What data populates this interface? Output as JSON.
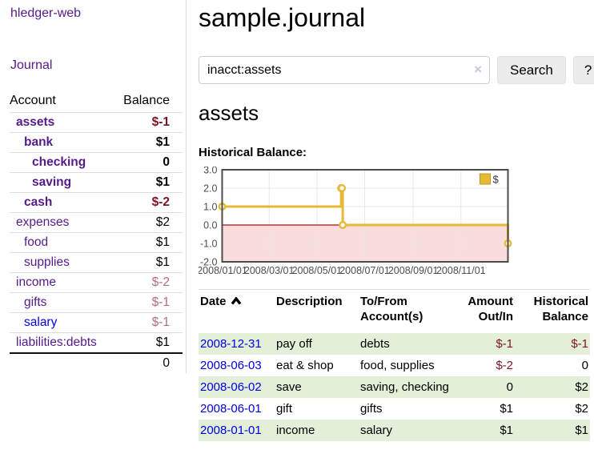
{
  "sidebar": {
    "brand": "hledger-web",
    "journal_link": "Journal",
    "accounts_table": {
      "headers": [
        "Account",
        "Balance"
      ],
      "rows": [
        {
          "name": "assets",
          "level": 1,
          "bold": true,
          "balance": "$-1",
          "balance_style": "neg-strong"
        },
        {
          "name": "bank",
          "level": 2,
          "bold": true,
          "balance": "$1",
          "balance_style": "pos"
        },
        {
          "name": "checking",
          "level": 3,
          "bold": true,
          "balance": "0",
          "balance_style": "pos"
        },
        {
          "name": "saving",
          "level": 3,
          "bold": true,
          "balance": "$1",
          "balance_style": "pos"
        },
        {
          "name": "cash",
          "level": 2,
          "bold": true,
          "balance": "$-2",
          "balance_style": "neg-strong"
        },
        {
          "name": "expenses",
          "level": 1,
          "bold": false,
          "balance": "$2",
          "balance_style": "pos"
        },
        {
          "name": "food",
          "level": 2,
          "bold": false,
          "balance": "$1",
          "balance_style": "pos"
        },
        {
          "name": "supplies",
          "level": 2,
          "bold": false,
          "balance": "$1",
          "balance_style": "pos"
        },
        {
          "name": "income",
          "level": 1,
          "bold": false,
          "balance": "$-2",
          "balance_style": "neg-muted"
        },
        {
          "name": "gifts",
          "level": 2,
          "bold": false,
          "balance": "$-1",
          "balance_style": "neg-muted"
        },
        {
          "name": "salary",
          "level": 2,
          "bold": false,
          "link_color": "unvisited",
          "balance": "$-1",
          "balance_style": "neg-muted"
        },
        {
          "name": "liabilities:debts",
          "level": 1,
          "bold": false,
          "balance": "$1",
          "balance_style": "pos"
        }
      ],
      "total": "0"
    }
  },
  "main": {
    "title": "sample.journal",
    "search": {
      "value": "inacct:assets",
      "clear_icon": "×",
      "button_label": "Search",
      "help_label": "?"
    },
    "account_heading": "assets",
    "chart_label": "Historical Balance:",
    "register_table": {
      "headers": [
        "Date",
        "Description",
        "To/From Account(s)",
        "Amount Out/In",
        "Historical Balance"
      ],
      "sort_column": "Date",
      "sort_direction": "ascending",
      "rows": [
        {
          "date": "2008-12-31",
          "description": "pay off",
          "accounts": "debts",
          "amount": "$-1",
          "amount_neg": true,
          "balance": "$-1",
          "balance_neg": true
        },
        {
          "date": "2008-06-03",
          "description": "eat & shop",
          "accounts": "food, supplies",
          "amount": "$-2",
          "amount_neg": true,
          "balance": "0",
          "balance_neg": false
        },
        {
          "date": "2008-06-02",
          "description": "save",
          "accounts": "saving, checking",
          "amount": "0",
          "amount_neg": false,
          "balance": "$2",
          "balance_neg": false
        },
        {
          "date": "2008-06-01",
          "description": "gift",
          "accounts": "gifts",
          "amount": "$1",
          "amount_neg": false,
          "balance": "$2",
          "balance_neg": false
        },
        {
          "date": "2008-01-01",
          "description": "income",
          "accounts": "salary",
          "amount": "$1",
          "amount_neg": false,
          "balance": "$1",
          "balance_neg": false
        }
      ]
    }
  },
  "chart_data": {
    "type": "line",
    "step": true,
    "title": "Historical Balance:",
    "series": [
      {
        "name": "$",
        "color": "#e7ba35",
        "points": [
          [
            "2008-01-01",
            1
          ],
          [
            "2008-06-01",
            2
          ],
          [
            "2008-06-02",
            2
          ],
          [
            "2008-06-03",
            0
          ],
          [
            "2008-12-31",
            -1
          ]
        ]
      }
    ],
    "x_ticks": [
      [
        "2008-01-01",
        "2008/01/01"
      ],
      [
        "2008-03-01",
        "2008/03/01"
      ],
      [
        "2008-05-01",
        "2008/05/01"
      ],
      [
        "2008-07-01",
        "2008/07/01"
      ],
      [
        "2008-09-01",
        "2008/09/01"
      ],
      [
        "2008-11-01",
        "2008/11/01"
      ]
    ],
    "y_ticks": [
      3.0,
      2.0,
      1.0,
      0.0,
      -1.0,
      -2.0
    ],
    "ylim": [
      -2,
      3
    ],
    "xlim": [
      "2008-01-01",
      "2008-12-31"
    ],
    "legend": {
      "label": "$",
      "position": "top-right"
    },
    "grid": true,
    "negative_region_fill": "#fadcdc",
    "zero_line_color": "#a01212",
    "grid_color": "#e7e7e7",
    "border_color": "#4d4d4d"
  },
  "colors": {
    "link_visited": "#551a8b",
    "link_unvisited": "#0000ee",
    "negative_strong": "#7d1423",
    "negative_muted": "#b56e7d",
    "row_alt_green": "#e3efd9",
    "series_gold": "#e7ba35"
  }
}
